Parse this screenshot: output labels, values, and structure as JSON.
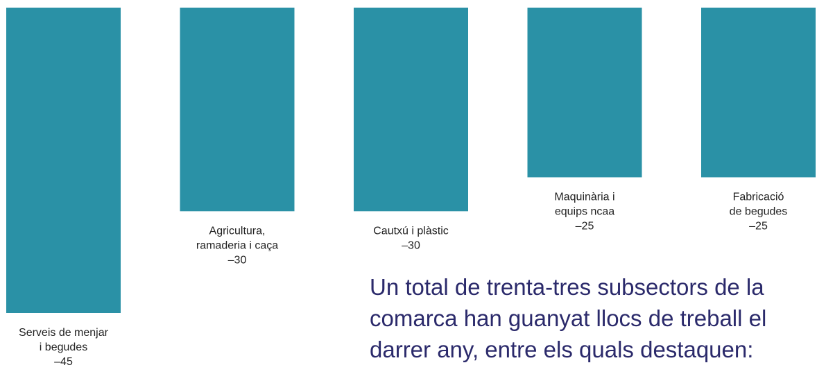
{
  "chart_data": {
    "type": "bar",
    "color": "#2a91a6",
    "categories": [
      [
        "Serveis de menjar",
        "i begudes"
      ],
      [
        "Agricultura,",
        "ramaderia i caça"
      ],
      [
        "Cautxú i plàstic"
      ],
      [
        "Maquinària i",
        "equips ncaa"
      ],
      [
        "Fabricació",
        "de begudes"
      ]
    ],
    "values": [
      -45,
      -30,
      -30,
      -25,
      -25
    ],
    "value_labels": [
      "–45",
      "–30",
      "–30",
      "–25",
      "–25"
    ],
    "annotation": [
      "Un total de trenta-tres subsectors de la",
      "comarca han guanyat llocs de treball el",
      "darrer any, entre els quals destaquen:"
    ]
  }
}
